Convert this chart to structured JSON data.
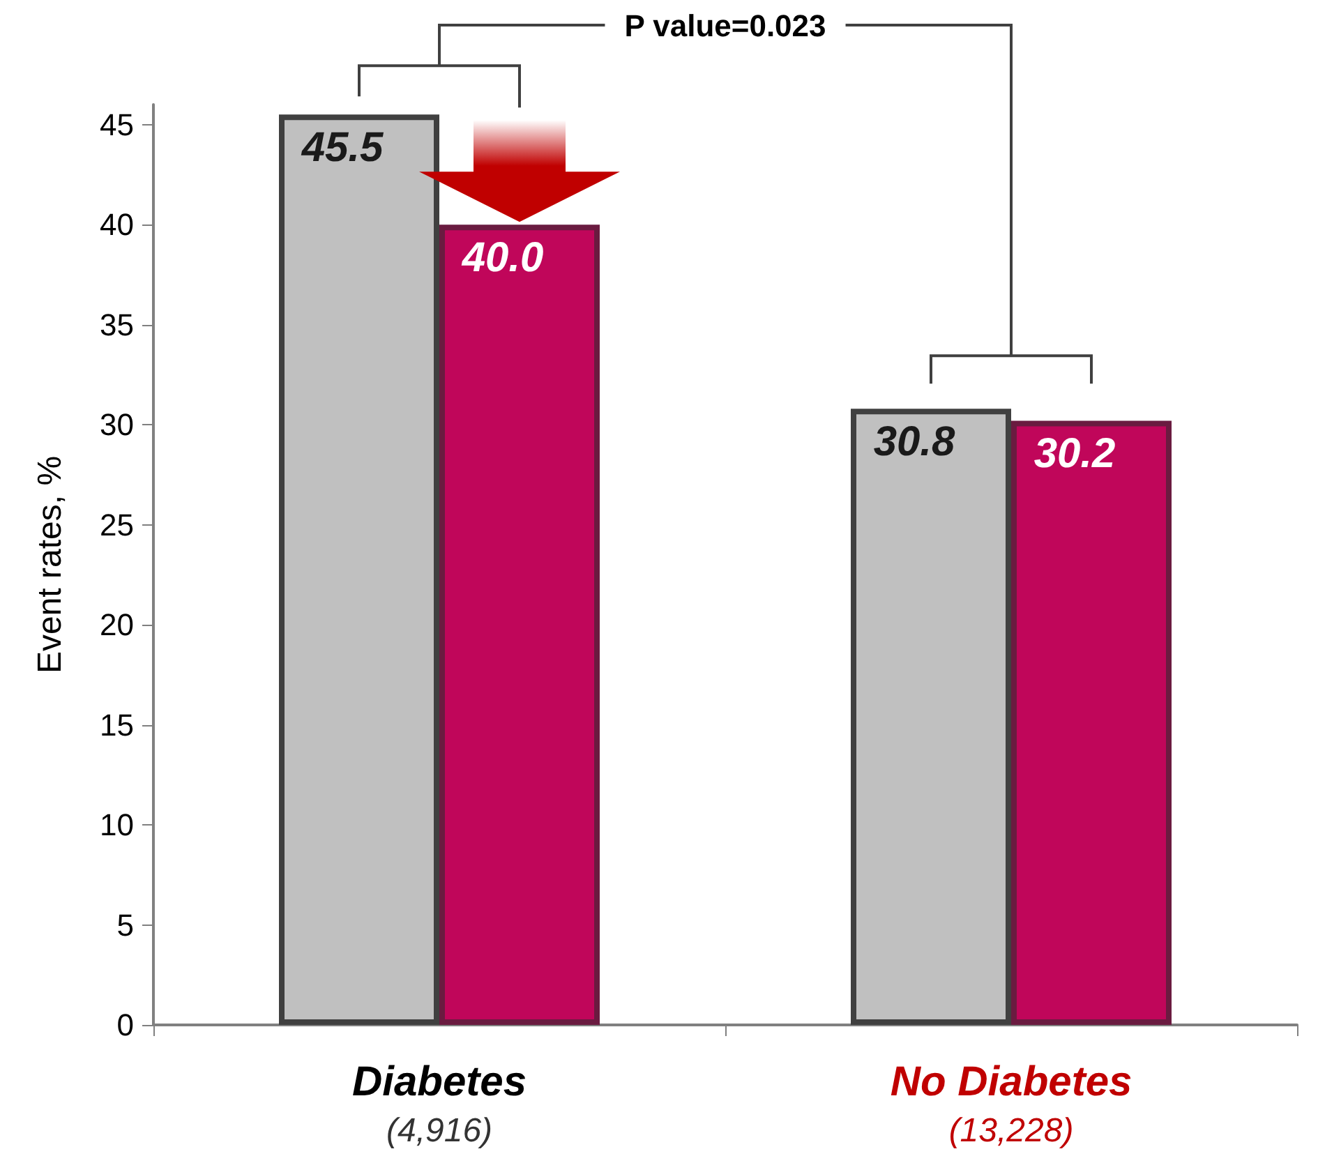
{
  "chart_data": {
    "type": "bar",
    "categories": [
      "Diabetes\n(4,916)",
      "No Diabetes\n(13,228)"
    ],
    "series": [
      {
        "color": "#c0c0c0",
        "values": [
          45.5,
          30.8
        ],
        "value_labels": [
          "45.5",
          "30.8"
        ]
      },
      {
        "color": "#c0065a",
        "values": [
          40.0,
          30.2
        ],
        "value_labels": [
          "40.0",
          "30.2"
        ]
      }
    ],
    "ylabel": "Event rates, %",
    "ylim": [
      0,
      46
    ],
    "yticks": [
      0,
      5,
      10,
      15,
      20,
      25,
      30,
      35,
      40,
      45
    ],
    "grid": false,
    "annotations": [
      "P value=0.023"
    ]
  }
}
